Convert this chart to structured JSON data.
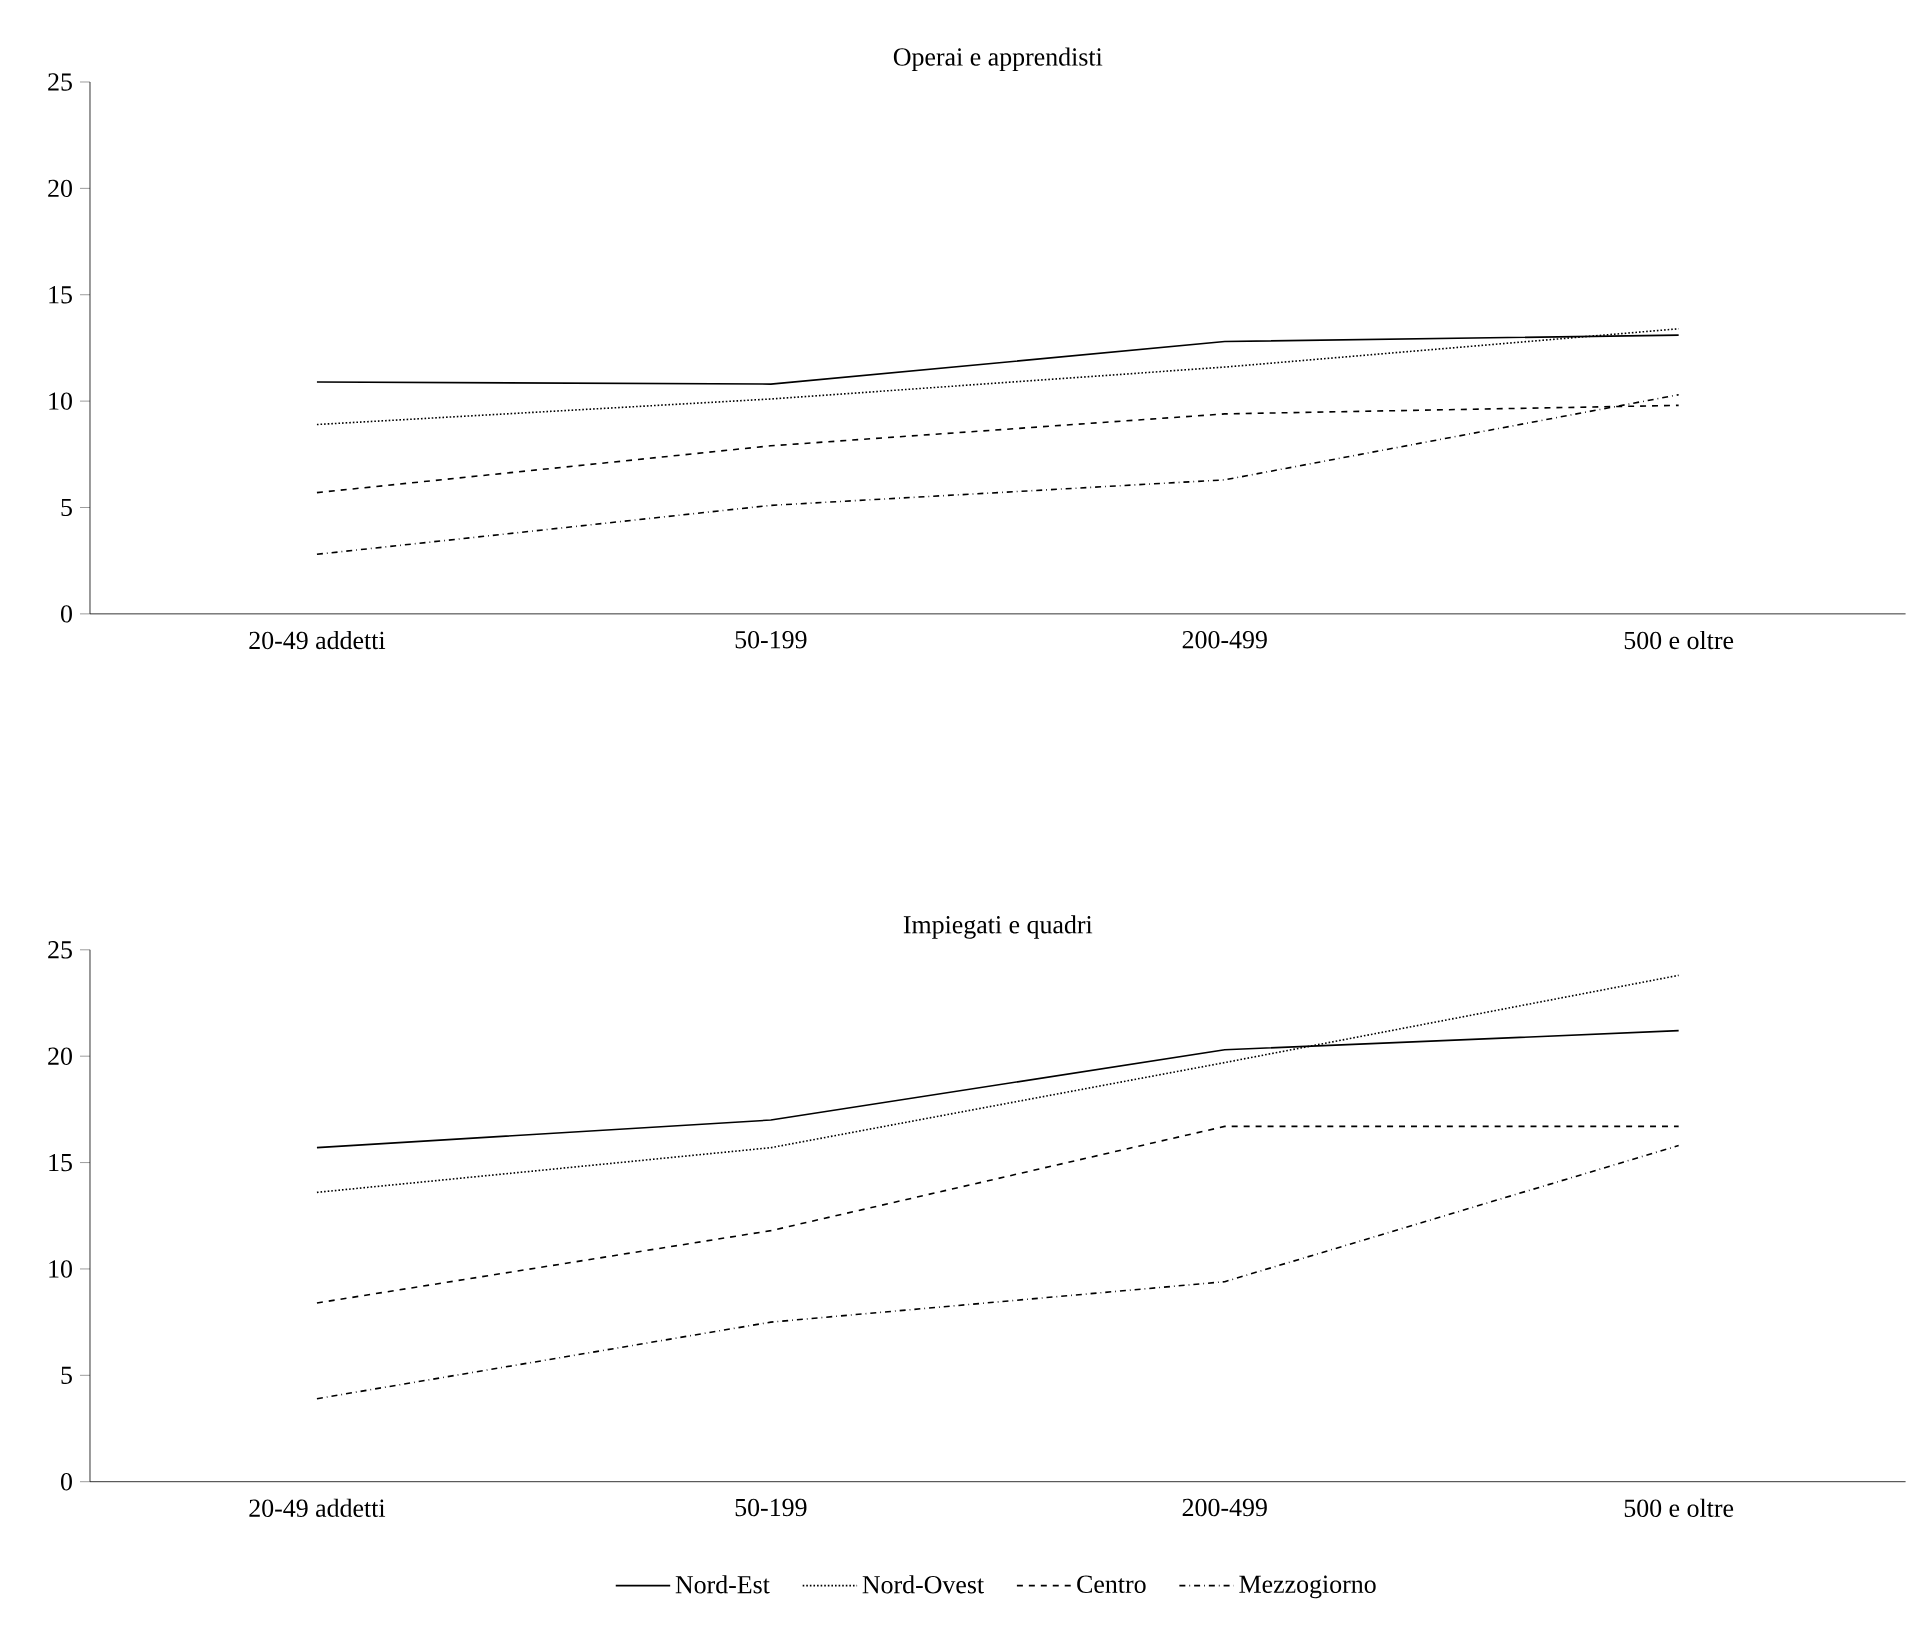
{
  "chart_data": [
    {
      "type": "line",
      "title": "Operai e apprendisti",
      "categories": [
        "20-49 addetti",
        "50-199",
        "200-499",
        "500 e oltre"
      ],
      "ylim": [
        0,
        25
      ],
      "yticks": [
        0,
        5,
        10,
        15,
        20,
        25
      ],
      "grid": false,
      "legend": false,
      "series": [
        {
          "color": "#000000",
          "line_style": "solid",
          "values": [
            10.9,
            10.8,
            12.8,
            13.1
          ]
        },
        {
          "color": "#000000",
          "line_style": "dotted",
          "values": [
            8.9,
            10.1,
            11.6,
            13.4
          ]
        },
        {
          "color": "#000000",
          "line_style": "dashed",
          "values": [
            5.7,
            7.9,
            9.4,
            9.8
          ]
        },
        {
          "color": "#000000",
          "line_style": "dashdot",
          "values": [
            2.8,
            5.1,
            6.3,
            10.3
          ]
        }
      ]
    },
    {
      "type": "line",
      "title": "Impiegati e quadri",
      "categories": [
        "20-49 addetti",
        "50-199",
        "200-499",
        "500 e oltre"
      ],
      "ylim": [
        0,
        25
      ],
      "yticks": [
        0,
        5,
        10,
        15,
        20,
        25
      ],
      "grid": false,
      "legend": "bottom",
      "series": [
        {
          "name": "Nord-Est",
          "color": "#000000",
          "line_style": "solid",
          "values": [
            15.7,
            17.0,
            20.3,
            21.2
          ]
        },
        {
          "name": "Nord-Ovest",
          "color": "#000000",
          "line_style": "dotted",
          "values": [
            13.6,
            15.7,
            19.7,
            23.8
          ]
        },
        {
          "name": "Centro",
          "color": "#000000",
          "line_style": "dashed",
          "values": [
            8.4,
            11.8,
            16.7,
            16.7
          ]
        },
        {
          "name": "Mezzogiorno",
          "color": "#000000",
          "line_style": "dashdot",
          "values": [
            3.9,
            7.5,
            9.4,
            15.8
          ]
        }
      ]
    }
  ]
}
